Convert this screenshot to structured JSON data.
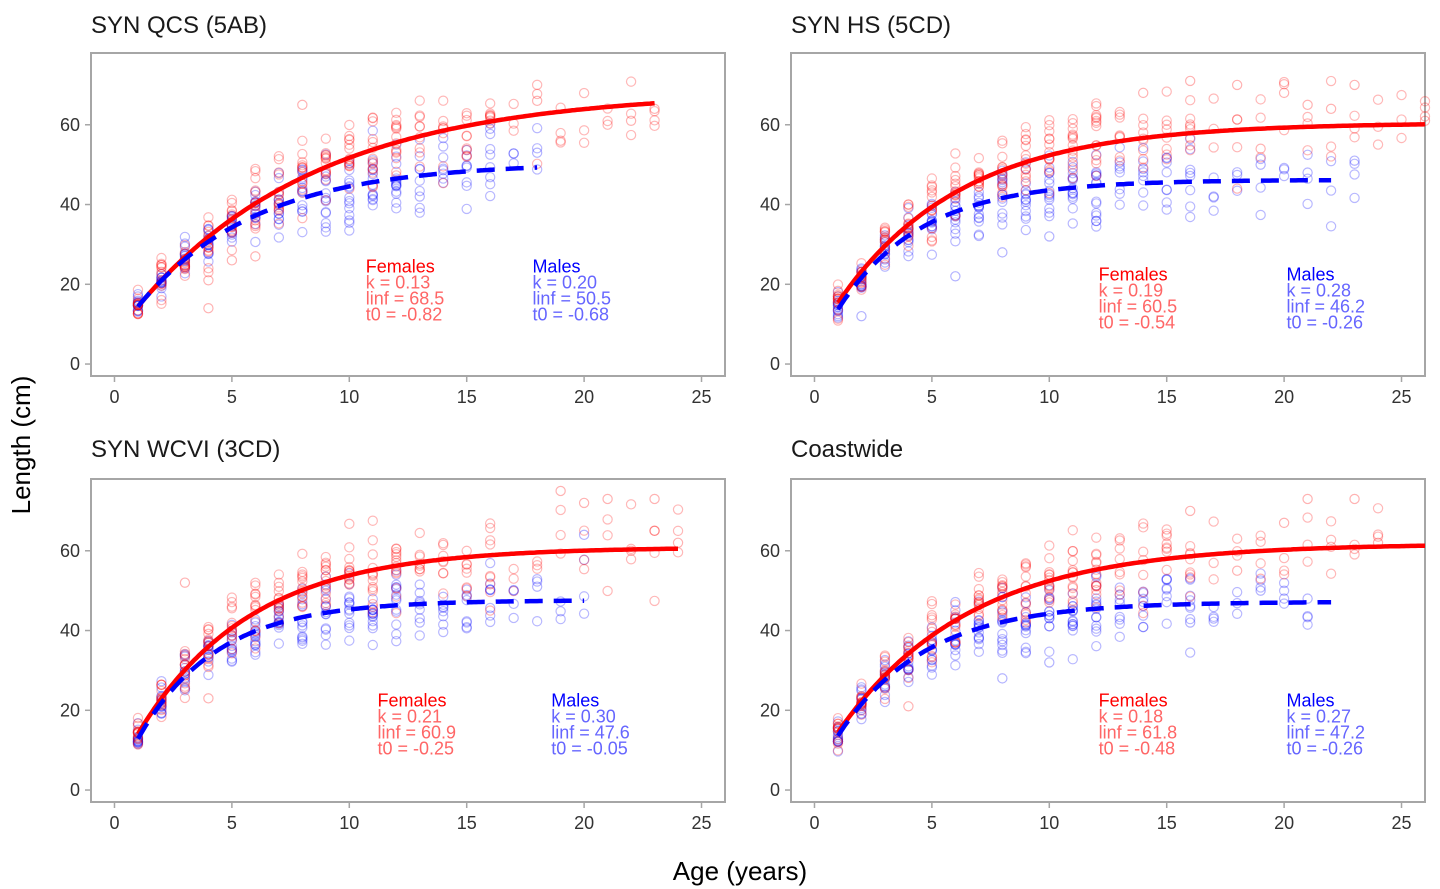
{
  "figure": {
    "xlabel": "Age (years)",
    "ylabel": "Length (cm)",
    "colors": {
      "female": "#ff0000",
      "male": "#0000ff",
      "frame": "#a6a6a6"
    }
  },
  "chart_data": [
    {
      "type": "scatter",
      "title": "SYN QCS (5AB)",
      "xlim": [
        -1,
        26
      ],
      "ylim": [
        -3,
        78
      ],
      "xticks": [
        0,
        5,
        10,
        15,
        20,
        25
      ],
      "yticks": [
        0,
        20,
        40,
        60
      ],
      "grid": false,
      "series": [
        {
          "name": "Females",
          "kind": "curve",
          "style": "solid",
          "color": "#ff0000",
          "k": 0.13,
          "linf": 68.5,
          "t0": -0.82,
          "x_range": [
            1,
            23
          ],
          "param_text": [
            "k = 0.13",
            "linf = 68.5",
            "t0 = -0.82"
          ],
          "max_age": 23
        },
        {
          "name": "Males",
          "kind": "curve",
          "style": "dashed",
          "color": "#0000ff",
          "k": 0.2,
          "linf": 50.5,
          "t0": -0.68,
          "x_range": [
            1,
            18
          ],
          "param_text": [
            "k = 0.20",
            "linf = 50.5",
            "t0 = -0.68"
          ],
          "max_age": 18
        }
      ],
      "points_note_ages": [
        1,
        23
      ],
      "annotation_position": {
        "female_age": 10.7,
        "male_age": 17.8,
        "top_length": 23
      },
      "outliers": [
        {
          "sex": "F",
          "x": 4,
          "y": 14
        },
        {
          "sex": "F",
          "x": 8,
          "y": 65
        },
        {
          "sex": "F",
          "x": 13,
          "y": 62
        },
        {
          "sex": "F",
          "x": 15,
          "y": 52
        },
        {
          "sex": "F",
          "x": 18,
          "y": 66
        },
        {
          "sex": "F",
          "x": 19,
          "y": 56
        },
        {
          "sex": "F",
          "x": 22,
          "y": 61
        },
        {
          "sex": "F",
          "x": 23,
          "y": 64
        },
        {
          "sex": "M",
          "x": 10,
          "y": 36
        },
        {
          "sex": "M",
          "x": 13,
          "y": 42
        },
        {
          "sex": "M",
          "x": 16,
          "y": 59
        },
        {
          "sex": "M",
          "x": 18,
          "y": 53
        },
        {
          "sex": "F",
          "x": 6,
          "y": 27
        },
        {
          "sex": "F",
          "x": 5,
          "y": 26
        },
        {
          "sex": "F",
          "x": 4,
          "y": 21
        }
      ]
    },
    {
      "type": "scatter",
      "title": "SYN HS (5CD)",
      "xlim": [
        -1,
        26
      ],
      "ylim": [
        -3,
        78
      ],
      "xticks": [
        0,
        5,
        10,
        15,
        20,
        25
      ],
      "yticks": [
        0,
        20,
        40,
        60
      ],
      "grid": false,
      "series": [
        {
          "name": "Females",
          "kind": "curve",
          "style": "solid",
          "color": "#ff0000",
          "k": 0.19,
          "linf": 60.5,
          "t0": -0.54,
          "x_range": [
            1,
            26
          ],
          "param_text": [
            "k = 0.19",
            "linf = 60.5",
            "t0 = -0.54"
          ],
          "max_age": 26
        },
        {
          "name": "Males",
          "kind": "curve",
          "style": "dashed",
          "color": "#0000ff",
          "k": 0.28,
          "linf": 46.2,
          "t0": -0.26,
          "x_range": [
            1,
            22
          ],
          "param_text": [
            "k = 0.28",
            "linf = 46.2",
            "t0 = -0.26"
          ],
          "max_age": 23
        }
      ],
      "annotation_position": {
        "female_age": 12.1,
        "male_age": 20.1,
        "top_length": 21
      },
      "outliers": [
        {
          "sex": "F",
          "x": 16,
          "y": 71
        },
        {
          "sex": "F",
          "x": 14,
          "y": 68
        },
        {
          "sex": "F",
          "x": 18,
          "y": 70
        },
        {
          "sex": "F",
          "x": 20,
          "y": 68
        },
        {
          "sex": "F",
          "x": 23,
          "y": 70
        },
        {
          "sex": "F",
          "x": 22,
          "y": 64
        },
        {
          "sex": "F",
          "x": 21,
          "y": 65
        },
        {
          "sex": "F",
          "x": 26,
          "y": 61
        },
        {
          "sex": "M",
          "x": 6,
          "y": 22
        },
        {
          "sex": "M",
          "x": 8,
          "y": 28
        },
        {
          "sex": "M",
          "x": 10,
          "y": 32
        },
        {
          "sex": "M",
          "x": 2,
          "y": 12
        },
        {
          "sex": "M",
          "x": 19,
          "y": 50
        },
        {
          "sex": "M",
          "x": 21,
          "y": 48
        },
        {
          "sex": "M",
          "x": 23,
          "y": 51
        },
        {
          "sex": "M",
          "x": 17,
          "y": 42
        },
        {
          "sex": "F",
          "x": 18,
          "y": 44
        },
        {
          "sex": "F",
          "x": 19,
          "y": 54
        }
      ]
    },
    {
      "type": "scatter",
      "title": "SYN WCVI (3CD)",
      "xlim": [
        -1,
        26
      ],
      "ylim": [
        -3,
        78
      ],
      "xticks": [
        0,
        5,
        10,
        15,
        20,
        25
      ],
      "yticks": [
        0,
        20,
        40,
        60
      ],
      "grid": false,
      "series": [
        {
          "name": "Females",
          "kind": "curve",
          "style": "solid",
          "color": "#ff0000",
          "k": 0.21,
          "linf": 60.9,
          "t0": -0.25,
          "x_range": [
            1,
            24
          ],
          "param_text": [
            "k = 0.21",
            "linf = 60.9",
            "t0 = -0.25"
          ],
          "max_age": 24
        },
        {
          "name": "Males",
          "kind": "curve",
          "style": "dashed",
          "color": "#0000ff",
          "k": 0.3,
          "linf": 47.6,
          "t0": -0.05,
          "x_range": [
            1,
            20
          ],
          "param_text": [
            "k = 0.30",
            "linf = 47.6",
            "t0 = -0.05"
          ],
          "max_age": 20
        }
      ],
      "annotation_position": {
        "female_age": 11.2,
        "male_age": 18.6,
        "top_length": 21
      },
      "outliers": [
        {
          "sex": "F",
          "x": 3,
          "y": 52
        },
        {
          "sex": "F",
          "x": 20,
          "y": 72
        },
        {
          "sex": "F",
          "x": 19,
          "y": 75
        },
        {
          "sex": "F",
          "x": 21,
          "y": 73
        },
        {
          "sex": "F",
          "x": 23,
          "y": 73
        },
        {
          "sex": "F",
          "x": 23,
          "y": 65
        },
        {
          "sex": "F",
          "x": 22,
          "y": 60
        },
        {
          "sex": "F",
          "x": 24,
          "y": 62
        },
        {
          "sex": "M",
          "x": 20,
          "y": 64
        },
        {
          "sex": "M",
          "x": 18,
          "y": 51
        },
        {
          "sex": "M",
          "x": 17,
          "y": 50
        },
        {
          "sex": "M",
          "x": 13,
          "y": 42
        },
        {
          "sex": "F",
          "x": 16,
          "y": 45
        },
        {
          "sex": "F",
          "x": 4,
          "y": 23
        }
      ]
    },
    {
      "type": "scatter",
      "title": "Coastwide",
      "xlim": [
        -1,
        26
      ],
      "ylim": [
        -3,
        78
      ],
      "xticks": [
        0,
        5,
        10,
        15,
        20,
        25
      ],
      "yticks": [
        0,
        20,
        40,
        60
      ],
      "grid": false,
      "series": [
        {
          "name": "Females",
          "kind": "curve",
          "style": "solid",
          "color": "#ff0000",
          "k": 0.18,
          "linf": 61.8,
          "t0": -0.48,
          "x_range": [
            1,
            26
          ],
          "param_text": [
            "k = 0.18",
            "linf = 61.8",
            "t0 = -0.48"
          ],
          "max_age": 24
        },
        {
          "name": "Males",
          "kind": "curve",
          "style": "dashed",
          "color": "#0000ff",
          "k": 0.27,
          "linf": 47.2,
          "t0": -0.26,
          "x_range": [
            1,
            22
          ],
          "param_text": [
            "k = 0.27",
            "linf = 47.2",
            "t0 = -0.26"
          ],
          "max_age": 21
        }
      ],
      "annotation_position": {
        "female_age": 12.1,
        "male_age": 20.1,
        "top_length": 21
      },
      "outliers": [
        {
          "sex": "F",
          "x": 21,
          "y": 73
        },
        {
          "sex": "F",
          "x": 23,
          "y": 73
        },
        {
          "sex": "F",
          "x": 16,
          "y": 70
        },
        {
          "sex": "F",
          "x": 20,
          "y": 67
        },
        {
          "sex": "F",
          "x": 24,
          "y": 62
        },
        {
          "sex": "F",
          "x": 22,
          "y": 61
        },
        {
          "sex": "F",
          "x": 19,
          "y": 53
        },
        {
          "sex": "F",
          "x": 18,
          "y": 55
        },
        {
          "sex": "M",
          "x": 8,
          "y": 28
        },
        {
          "sex": "M",
          "x": 10,
          "y": 32
        },
        {
          "sex": "M",
          "x": 16,
          "y": 42
        },
        {
          "sex": "M",
          "x": 17,
          "y": 43
        },
        {
          "sex": "M",
          "x": 19,
          "y": 50
        },
        {
          "sex": "M",
          "x": 20,
          "y": 48
        },
        {
          "sex": "M",
          "x": 21,
          "y": 48
        },
        {
          "sex": "F",
          "x": 4,
          "y": 21
        }
      ]
    }
  ]
}
